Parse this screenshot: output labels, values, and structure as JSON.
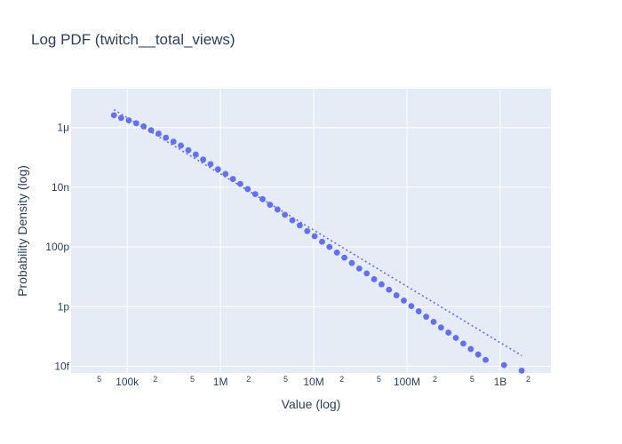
{
  "chart_data": {
    "type": "scatter",
    "title": "Log PDF (twitch__total_views)",
    "xlabel": "Value (log)",
    "ylabel": "Probability Density (log)",
    "x_scale": "log",
    "y_scale": "log",
    "xlim": [
      25000,
      3500000000
    ],
    "ylim": [
      6e-15,
      2e-05
    ],
    "grid": true,
    "legend": "none",
    "colors": {
      "plot_bg": "#e5ecf6",
      "grid": "#ffffff",
      "markers": "#636efa",
      "fit_line": "#636efa",
      "text": "#2a3f5f"
    },
    "x_ticks": [
      {
        "value": 50000,
        "label": "5",
        "minor": true
      },
      {
        "value": 100000,
        "label": "100k",
        "minor": false
      },
      {
        "value": 200000,
        "label": "2",
        "minor": true
      },
      {
        "value": 500000,
        "label": "5",
        "minor": true
      },
      {
        "value": 1000000,
        "label": "1M",
        "minor": false
      },
      {
        "value": 2000000,
        "label": "2",
        "minor": true
      },
      {
        "value": 5000000,
        "label": "5",
        "minor": true
      },
      {
        "value": 10000000,
        "label": "10M",
        "minor": false
      },
      {
        "value": 20000000,
        "label": "2",
        "minor": true
      },
      {
        "value": 50000000,
        "label": "5",
        "minor": true
      },
      {
        "value": 100000000,
        "label": "100M",
        "minor": false
      },
      {
        "value": 200000000,
        "label": "2",
        "minor": true
      },
      {
        "value": 500000000,
        "label": "5",
        "minor": true
      },
      {
        "value": 1000000000,
        "label": "1B",
        "minor": false
      },
      {
        "value": 2000000000,
        "label": "2",
        "minor": true
      }
    ],
    "y_ticks": [
      {
        "value": 1e-14,
        "label": "10f"
      },
      {
        "value": 1e-12,
        "label": "1p"
      },
      {
        "value": 1e-10,
        "label": "100p"
      },
      {
        "value": 1e-08,
        "label": "10n"
      },
      {
        "value": 1e-06,
        "label": "1μ"
      }
    ],
    "series": [
      {
        "mode": "markers",
        "x": [
          72000,
          86000,
          104000,
          125000,
          150000,
          180000,
          217000,
          260000,
          313000,
          376000,
          452000,
          543000,
          652000,
          783000,
          940000,
          1130000,
          1360000,
          1630000,
          1960000,
          2360000,
          2830000,
          3400000,
          4090000,
          4910000,
          5900000,
          7090000,
          8520000,
          10230000,
          12300000,
          14770000,
          17750000,
          21330000,
          25630000,
          30790000,
          37000000,
          44450000,
          53410000,
          64170000,
          77100000,
          92630000,
          111300000,
          133700000,
          160700000,
          193000000,
          231900000,
          278600000,
          334800000,
          402200000,
          483300000,
          580600000,
          697600000,
          1100000000,
          1700000000
        ],
        "y": [
          2.6e-06,
          2.1e-06,
          1.75e-06,
          1.4e-06,
          1.1e-06,
          8.2e-07,
          6.3e-07,
          4.6e-07,
          3.4e-07,
          2.5e-07,
          1.75e-07,
          1.25e-07,
          8.5e-08,
          6e-08,
          4e-08,
          2.8e-08,
          1.9e-08,
          1.3e-08,
          8.7e-09,
          5.9e-09,
          4e-09,
          2.6e-09,
          1.8e-09,
          1.2e-09,
          7.8e-10,
          5.3e-10,
          3.4e-10,
          2.3e-10,
          1.5e-10,
          1e-10,
          6.5e-11,
          4.4e-11,
          2.9e-11,
          1.9e-11,
          1.3e-11,
          8.3e-12,
          5.6e-12,
          3.7e-12,
          2.4e-12,
          1.6e-12,
          1.05e-12,
          7e-13,
          4.6e-13,
          3.1e-13,
          2e-13,
          1.35e-13,
          9e-14,
          5.8e-14,
          3.8e-14,
          2.5e-14,
          1.65e-14,
          1.1e-14,
          7.2e-15
        ]
      },
      {
        "mode": "lines",
        "dash": "dot",
        "x": [
          72000,
          1700000000
        ],
        "y": [
          4e-06,
          2.3e-14
        ]
      }
    ]
  }
}
